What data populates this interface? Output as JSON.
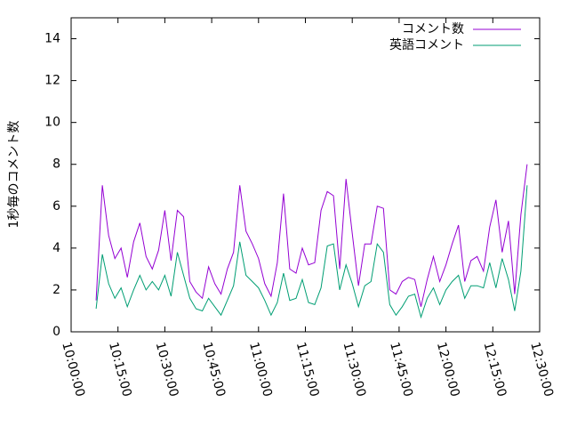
{
  "chart_data": {
    "type": "line",
    "y_label": "1秒毎のコメント数",
    "x": [
      "10:08:00",
      "10:10:00",
      "10:12:00",
      "10:14:00",
      "10:16:00",
      "10:18:00",
      "10:20:00",
      "10:22:00",
      "10:24:00",
      "10:26:00",
      "10:28:00",
      "10:30:00",
      "10:32:00",
      "10:34:00",
      "10:36:00",
      "10:38:00",
      "10:40:00",
      "10:42:00",
      "10:44:00",
      "10:46:00",
      "10:48:00",
      "10:50:00",
      "10:52:00",
      "10:54:00",
      "10:56:00",
      "10:58:00",
      "11:00:00",
      "11:02:00",
      "11:04:00",
      "11:06:00",
      "11:08:00",
      "11:10:00",
      "11:12:00",
      "11:14:00",
      "11:16:00",
      "11:18:00",
      "11:20:00",
      "11:22:00",
      "11:24:00",
      "11:26:00",
      "11:28:00",
      "11:30:00",
      "11:32:00",
      "11:34:00",
      "11:36:00",
      "11:38:00",
      "11:40:00",
      "11:42:00",
      "11:44:00",
      "11:46:00",
      "11:48:00",
      "11:50:00",
      "11:52:00",
      "11:54:00",
      "11:56:00",
      "11:58:00",
      "12:00:00",
      "12:02:00",
      "12:04:00",
      "12:06:00",
      "12:08:00",
      "12:10:00",
      "12:12:00",
      "12:14:00",
      "12:16:00",
      "12:18:00",
      "12:20:00",
      "12:22:00",
      "12:24:00",
      "12:26:00"
    ],
    "series": [
      {
        "name": "コメント数",
        "color": "#9400d3",
        "values": [
          1.5,
          7.0,
          4.6,
          3.5,
          4.0,
          2.6,
          4.3,
          5.2,
          3.6,
          3.0,
          3.9,
          5.8,
          3.4,
          5.8,
          5.5,
          2.4,
          1.9,
          1.6,
          3.1,
          2.3,
          1.8,
          3.0,
          3.8,
          7.0,
          4.8,
          4.2,
          3.5,
          2.3,
          1.7,
          3.3,
          6.6,
          3.0,
          2.8,
          4.0,
          3.2,
          3.3,
          5.8,
          6.7,
          6.5,
          3.0,
          7.3,
          4.7,
          2.2,
          4.2,
          4.2,
          6.0,
          5.9,
          2.0,
          1.8,
          2.4,
          2.6,
          2.5,
          1.2,
          2.5,
          3.6,
          2.4,
          3.2,
          4.2,
          5.1,
          2.4,
          3.4,
          3.6,
          2.9,
          5.0,
          6.3,
          3.8,
          5.3,
          1.8,
          5.6,
          8.0
        ]
      },
      {
        "name": "英語コメント",
        "color": "#009e73",
        "values": [
          1.1,
          3.7,
          2.3,
          1.6,
          2.1,
          1.2,
          2.0,
          2.7,
          2.0,
          2.4,
          2.0,
          2.7,
          1.7,
          3.8,
          2.7,
          1.6,
          1.1,
          1.0,
          1.6,
          1.2,
          0.8,
          1.5,
          2.2,
          4.3,
          2.7,
          2.4,
          2.1,
          1.5,
          0.8,
          1.4,
          2.8,
          1.5,
          1.6,
          2.5,
          1.4,
          1.3,
          2.1,
          4.1,
          4.2,
          2.0,
          3.2,
          2.3,
          1.2,
          2.2,
          2.4,
          4.2,
          3.8,
          1.3,
          0.8,
          1.2,
          1.7,
          1.8,
          0.7,
          1.6,
          2.1,
          1.3,
          2.0,
          2.4,
          2.7,
          1.6,
          2.2,
          2.2,
          2.1,
          3.3,
          2.1,
          3.5,
          2.5,
          1.0,
          2.9,
          7.0
        ]
      }
    ],
    "xlim": [
      "10:00:00",
      "12:30:00"
    ],
    "xticks": [
      "10:00:00",
      "10:15:00",
      "10:30:00",
      "10:45:00",
      "11:00:00",
      "11:15:00",
      "11:30:00",
      "11:45:00",
      "12:00:00",
      "12:15:00",
      "12:30:00"
    ],
    "ylim": [
      0,
      15
    ],
    "yticks": [
      0,
      2,
      4,
      6,
      8,
      10,
      12,
      14
    ],
    "legend": "top-right"
  }
}
